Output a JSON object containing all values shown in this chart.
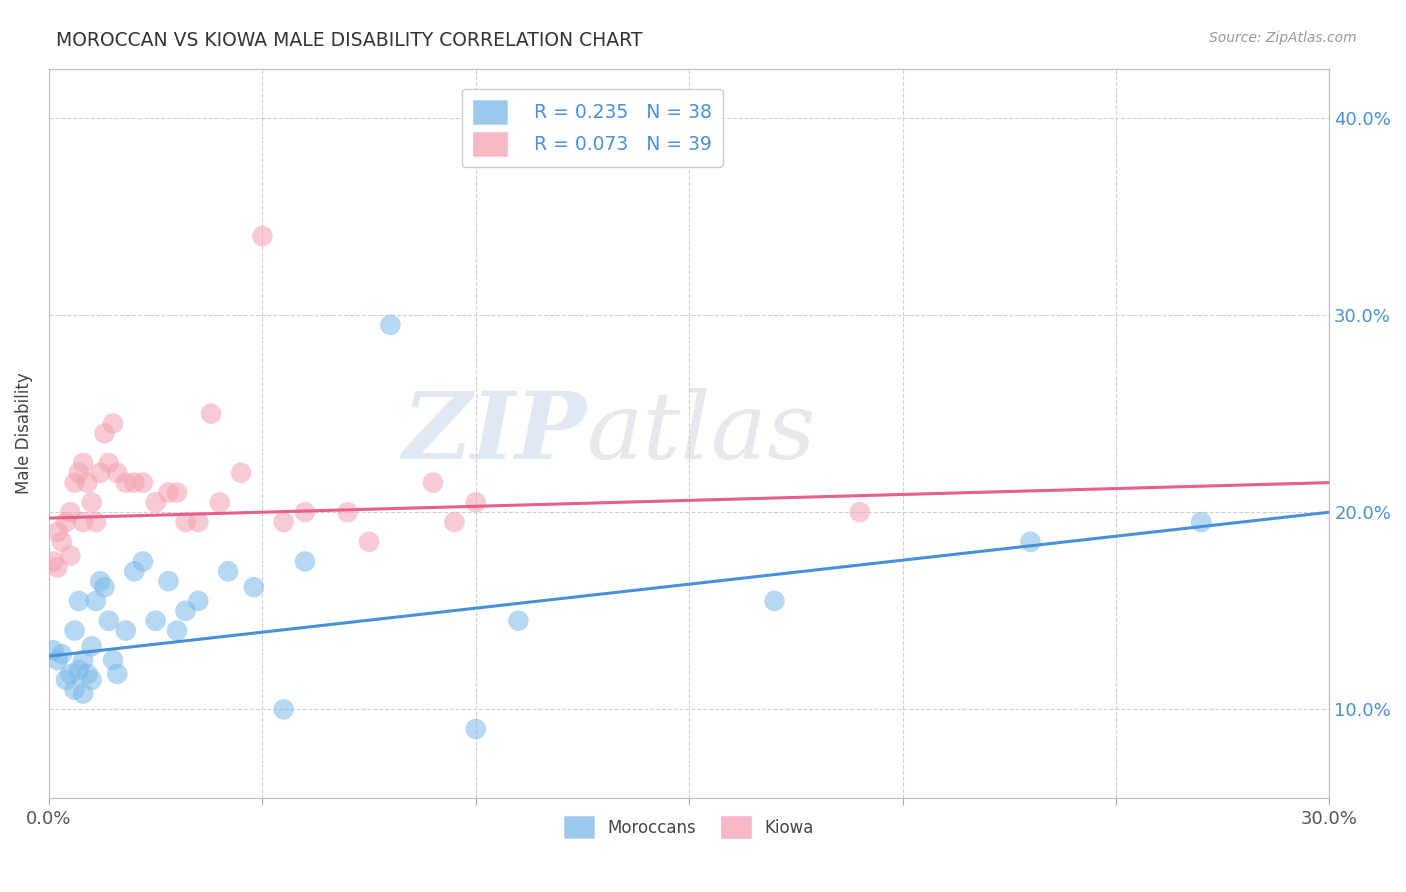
{
  "title": "MOROCCAN VS KIOWA MALE DISABILITY CORRELATION CHART",
  "source": "Source: ZipAtlas.com",
  "ylabel": "Male Disability",
  "xlim": [
    0.0,
    0.3
  ],
  "ylim": [
    0.055,
    0.425
  ],
  "moroccan_color": "#7ab8e8",
  "kiowa_color": "#f4a0b0",
  "moroccan_line_color": "#4a90d9",
  "kiowa_line_color": "#e8608a",
  "watermark_zip": "ZIP",
  "watermark_atlas": "atlas",
  "moroccan_x": [
    0.001,
    0.002,
    0.003,
    0.004,
    0.005,
    0.006,
    0.006,
    0.007,
    0.007,
    0.008,
    0.008,
    0.009,
    0.01,
    0.01,
    0.011,
    0.012,
    0.013,
    0.014,
    0.015,
    0.016,
    0.018,
    0.02,
    0.022,
    0.025,
    0.028,
    0.03,
    0.032,
    0.035,
    0.042,
    0.048,
    0.055,
    0.06,
    0.08,
    0.1,
    0.11,
    0.17,
    0.23,
    0.27
  ],
  "moroccan_y": [
    0.13,
    0.125,
    0.128,
    0.115,
    0.118,
    0.11,
    0.14,
    0.12,
    0.155,
    0.125,
    0.108,
    0.118,
    0.132,
    0.115,
    0.155,
    0.165,
    0.162,
    0.145,
    0.125,
    0.118,
    0.14,
    0.17,
    0.175,
    0.145,
    0.165,
    0.14,
    0.15,
    0.155,
    0.17,
    0.162,
    0.1,
    0.175,
    0.295,
    0.09,
    0.145,
    0.155,
    0.185,
    0.195
  ],
  "kiowa_x": [
    0.001,
    0.002,
    0.002,
    0.003,
    0.004,
    0.005,
    0.005,
    0.006,
    0.007,
    0.008,
    0.008,
    0.009,
    0.01,
    0.011,
    0.012,
    0.013,
    0.014,
    0.015,
    0.016,
    0.018,
    0.02,
    0.022,
    0.025,
    0.028,
    0.03,
    0.032,
    0.035,
    0.038,
    0.04,
    0.045,
    0.05,
    0.055,
    0.06,
    0.07,
    0.075,
    0.09,
    0.095,
    0.1,
    0.19
  ],
  "kiowa_y": [
    0.175,
    0.172,
    0.19,
    0.185,
    0.195,
    0.178,
    0.2,
    0.215,
    0.22,
    0.195,
    0.225,
    0.215,
    0.205,
    0.195,
    0.22,
    0.24,
    0.225,
    0.245,
    0.22,
    0.215,
    0.215,
    0.215,
    0.205,
    0.21,
    0.21,
    0.195,
    0.195,
    0.25,
    0.205,
    0.22,
    0.34,
    0.195,
    0.2,
    0.2,
    0.185,
    0.215,
    0.195,
    0.205,
    0.2
  ],
  "moroccan_line_x0": 0.0,
  "moroccan_line_y0": 0.127,
  "moroccan_line_x1": 0.3,
  "moroccan_line_y1": 0.2,
  "kiowa_line_x0": 0.0,
  "kiowa_line_y0": 0.197,
  "kiowa_line_x1": 0.3,
  "kiowa_line_y1": 0.215
}
